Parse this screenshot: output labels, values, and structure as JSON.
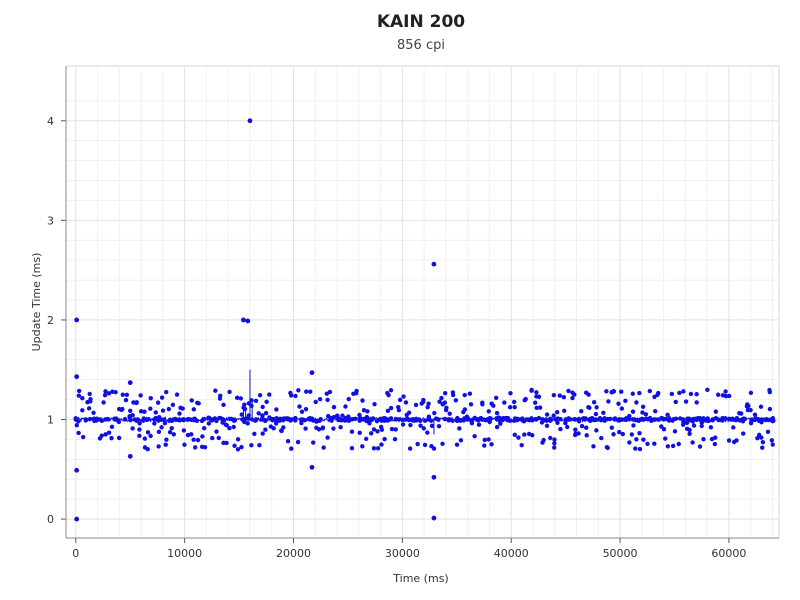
{
  "chart_data": {
    "type": "scatter",
    "title": "KAIN 200",
    "subtitle": "856 cpi",
    "xlabel": "Time (ms)",
    "ylabel": "Update Time (ms)",
    "xlim": [
      -900,
      64600
    ],
    "ylim": [
      -0.19,
      4.55
    ],
    "xticks": [
      0,
      10000,
      20000,
      30000,
      40000,
      50000,
      60000
    ],
    "xtick_labels": [
      "0",
      "10000",
      "20000",
      "30000",
      "40000",
      "50000",
      "60000"
    ],
    "yticks": [
      0,
      1,
      2,
      3,
      4
    ],
    "ytick_labels": [
      "0",
      "1",
      "2",
      "3",
      "4"
    ],
    "grid": true,
    "series_color": "#1010e0",
    "cluster": {
      "x_start": 0,
      "x_end": 64200,
      "central_value": 1.0,
      "value_range": [
        0.7,
        1.3
      ],
      "note_points": "dense band of samples between 0.7 and 1.3 ms across the full time span"
    },
    "outliers": [
      {
        "x": 80,
        "y": 2.0
      },
      {
        "x": 80,
        "y": 1.43
      },
      {
        "x": 80,
        "y": 0.49
      },
      {
        "x": 80,
        "y": 0.0
      },
      {
        "x": 5000,
        "y": 1.37
      },
      {
        "x": 5000,
        "y": 0.63
      },
      {
        "x": 15400,
        "y": 2.0
      },
      {
        "x": 15800,
        "y": 1.99
      },
      {
        "x": 16000,
        "y": 4.0
      },
      {
        "x": 21700,
        "y": 1.47
      },
      {
        "x": 21700,
        "y": 0.52
      },
      {
        "x": 32900,
        "y": 2.56
      },
      {
        "x": 32900,
        "y": 0.42
      },
      {
        "x": 32900,
        "y": 0.01
      }
    ],
    "spikes": [
      {
        "x": 16000,
        "y": 1.5
      },
      {
        "x": 15400,
        "y": 1.12
      },
      {
        "x": 15600,
        "y": 1.1
      },
      {
        "x": 16200,
        "y": 1.18
      },
      {
        "x": 32900,
        "y": 0.85
      }
    ]
  }
}
